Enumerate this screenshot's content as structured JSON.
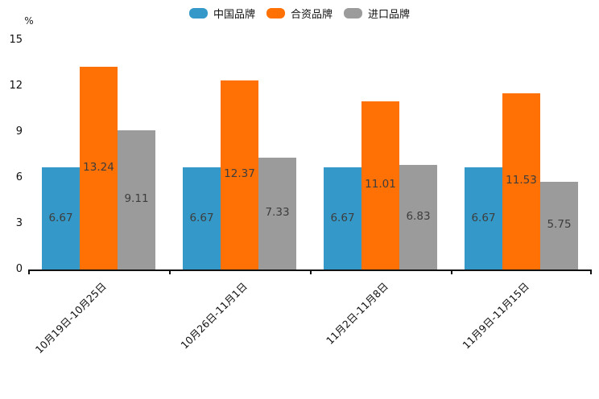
{
  "chart_data": {
    "type": "bar",
    "title": "",
    "unit_label": "%",
    "categories": [
      "10月19日-10月25日",
      "10月26日-11月1日",
      "11月2日-11月8日",
      "11月9日-11月15日"
    ],
    "series": [
      {
        "name": "中国品牌",
        "color": "#3499c9",
        "values": [
          6.67,
          6.67,
          6.67,
          6.67
        ]
      },
      {
        "name": "合资品牌",
        "color": "#ff7104",
        "values": [
          13.24,
          12.37,
          11.01,
          11.53
        ]
      },
      {
        "name": "进口品牌",
        "color": "#9b9b9b",
        "values": [
          9.11,
          7.33,
          6.83,
          5.75
        ]
      }
    ],
    "ylim": [
      0,
      15
    ],
    "yticks": [
      0,
      3,
      6,
      9,
      12,
      15
    ],
    "grid": false,
    "legend_position": "top-center",
    "value_labels": "inside-center",
    "xlabel_rotation_deg": 45
  }
}
